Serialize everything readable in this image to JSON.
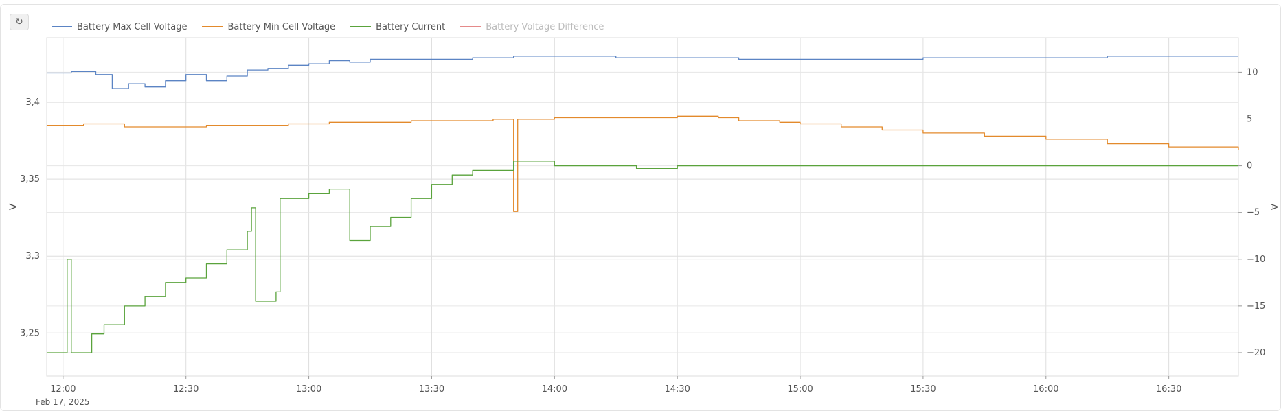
{
  "toolbar": {
    "reset_icon": "↻"
  },
  "legend": [
    {
      "label": "Battery Max Cell Voltage",
      "color": "#5b84c4",
      "visible": true
    },
    {
      "label": "Battery Min Cell Voltage",
      "color": "#e38a2c",
      "visible": true
    },
    {
      "label": "Battery Current",
      "color": "#5aa33c",
      "visible": true
    },
    {
      "label": "Battery Voltage Difference",
      "color": "#e58a8a",
      "visible": false
    }
  ],
  "chart_data": {
    "type": "line",
    "xlabel_date": "Feb 17, 2025",
    "x_ticks": [
      "12:00",
      "12:30",
      "13:00",
      "13:30",
      "14:00",
      "14:30",
      "15:00",
      "15:30",
      "16:00",
      "16:30"
    ],
    "x_range": [
      "11:56",
      "16:47"
    ],
    "y_left": {
      "label": "V",
      "ticks": [
        "3,25",
        "3,3",
        "3,35",
        "3,4"
      ],
      "range": [
        3.222,
        3.442
      ]
    },
    "y_right": {
      "label": "A",
      "ticks": [
        "−20",
        "−15",
        "−10",
        "−5",
        "0",
        "5",
        "10"
      ],
      "range": [
        -22.5,
        13.7
      ]
    },
    "grid": true,
    "series": [
      {
        "name": "Battery Max Cell Voltage",
        "axis": "left",
        "color": "#5b84c4",
        "points": [
          [
            "11:56",
            3.419
          ],
          [
            "12:02",
            3.42
          ],
          [
            "12:08",
            3.418
          ],
          [
            "12:12",
            3.409
          ],
          [
            "12:16",
            3.412
          ],
          [
            "12:20",
            3.41
          ],
          [
            "12:25",
            3.414
          ],
          [
            "12:30",
            3.418
          ],
          [
            "12:35",
            3.414
          ],
          [
            "12:40",
            3.417
          ],
          [
            "12:45",
            3.421
          ],
          [
            "12:50",
            3.422
          ],
          [
            "12:55",
            3.424
          ],
          [
            "13:00",
            3.425
          ],
          [
            "13:05",
            3.427
          ],
          [
            "13:10",
            3.426
          ],
          [
            "13:15",
            3.428
          ],
          [
            "13:20",
            3.428
          ],
          [
            "13:30",
            3.428
          ],
          [
            "13:40",
            3.429
          ],
          [
            "13:50",
            3.43
          ],
          [
            "14:00",
            3.43
          ],
          [
            "14:15",
            3.429
          ],
          [
            "14:30",
            3.429
          ],
          [
            "14:45",
            3.428
          ],
          [
            "15:00",
            3.428
          ],
          [
            "15:15",
            3.428
          ],
          [
            "15:30",
            3.429
          ],
          [
            "15:45",
            3.429
          ],
          [
            "16:00",
            3.429
          ],
          [
            "16:15",
            3.43
          ],
          [
            "16:30",
            3.43
          ],
          [
            "16:47",
            3.43
          ]
        ]
      },
      {
        "name": "Battery Min Cell Voltage",
        "axis": "left",
        "color": "#e38a2c",
        "points": [
          [
            "11:56",
            3.385
          ],
          [
            "12:05",
            3.386
          ],
          [
            "12:15",
            3.384
          ],
          [
            "12:25",
            3.384
          ],
          [
            "12:35",
            3.385
          ],
          [
            "12:45",
            3.385
          ],
          [
            "12:55",
            3.386
          ],
          [
            "13:05",
            3.387
          ],
          [
            "13:15",
            3.387
          ],
          [
            "13:25",
            3.388
          ],
          [
            "13:35",
            3.388
          ],
          [
            "13:45",
            3.389
          ],
          [
            "13:50",
            3.389
          ],
          [
            "13:50",
            3.329
          ],
          [
            "13:51",
            3.389
          ],
          [
            "14:00",
            3.39
          ],
          [
            "14:15",
            3.39
          ],
          [
            "14:30",
            3.391
          ],
          [
            "14:40",
            3.39
          ],
          [
            "14:45",
            3.388
          ],
          [
            "14:55",
            3.387
          ],
          [
            "15:00",
            3.386
          ],
          [
            "15:10",
            3.384
          ],
          [
            "15:20",
            3.382
          ],
          [
            "15:30",
            3.38
          ],
          [
            "15:45",
            3.378
          ],
          [
            "16:00",
            3.376
          ],
          [
            "16:15",
            3.373
          ],
          [
            "16:30",
            3.371
          ],
          [
            "16:47",
            3.369
          ]
        ]
      },
      {
        "name": "Battery Current",
        "axis": "right",
        "color": "#5aa33c",
        "points": [
          [
            "11:56",
            -20.0
          ],
          [
            "12:00",
            -20.0
          ],
          [
            "12:01",
            -10.0
          ],
          [
            "12:02",
            -20.0
          ],
          [
            "12:05",
            -20.0
          ],
          [
            "12:07",
            -18.0
          ],
          [
            "12:10",
            -17.0
          ],
          [
            "12:15",
            -15.0
          ],
          [
            "12:20",
            -14.0
          ],
          [
            "12:25",
            -12.5
          ],
          [
            "12:30",
            -12.0
          ],
          [
            "12:35",
            -10.5
          ],
          [
            "12:40",
            -9.0
          ],
          [
            "12:45",
            -7.0
          ],
          [
            "12:46",
            -4.5
          ],
          [
            "12:47",
            -14.5
          ],
          [
            "12:52",
            -13.5
          ],
          [
            "12:53",
            -3.5
          ],
          [
            "13:00",
            -3.0
          ],
          [
            "13:05",
            -2.5
          ],
          [
            "13:10",
            -8.0
          ],
          [
            "13:15",
            -6.5
          ],
          [
            "13:20",
            -5.5
          ],
          [
            "13:25",
            -3.5
          ],
          [
            "13:30",
            -2.0
          ],
          [
            "13:35",
            -1.0
          ],
          [
            "13:40",
            -0.5
          ],
          [
            "13:45",
            -0.5
          ],
          [
            "13:50",
            0.5
          ],
          [
            "14:00",
            0.0
          ],
          [
            "14:10",
            0.0
          ],
          [
            "14:20",
            -0.3
          ],
          [
            "14:30",
            0.0
          ],
          [
            "14:45",
            0.0
          ],
          [
            "15:00",
            0.0
          ],
          [
            "15:30",
            0.0
          ],
          [
            "16:00",
            0.0
          ],
          [
            "16:30",
            0.0
          ],
          [
            "16:47",
            0.0
          ]
        ]
      },
      {
        "name": "Battery Voltage Difference",
        "axis": "right",
        "color": "#e58a8a",
        "points": []
      }
    ]
  }
}
